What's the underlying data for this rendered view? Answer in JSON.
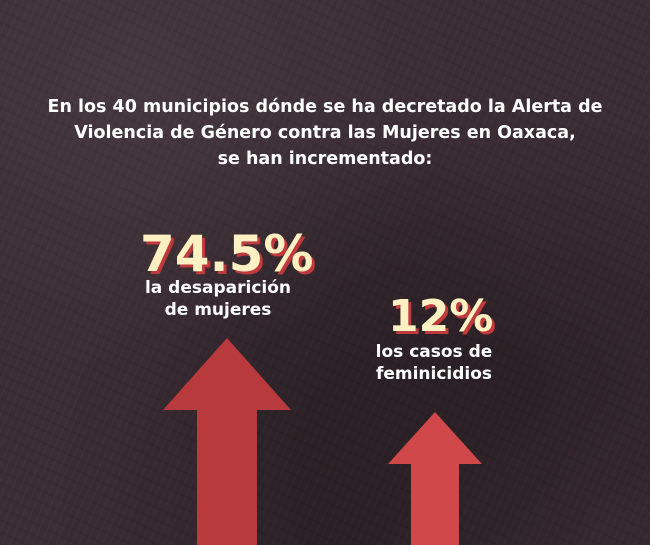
{
  "intro_text": "En los 40 municipios dónde se ha decretado la Alerta de\nViolencia de Género contra las Mujeres en Oaxaca,\nse han incrementado:",
  "stats": [
    {
      "value": "74.5%",
      "label": "la desaparición\nde mujeres"
    },
    {
      "value": "12%",
      "label": "los casos de\nfeminicidios"
    }
  ],
  "colors": {
    "background": "#3b2d34",
    "arrow_1": "#b83a3c",
    "arrow_2": "#d0484a",
    "value_text": "#fdf1c4",
    "value_shadow": "#c0393c"
  },
  "icons": [
    "arrow-up-icon",
    "arrow-up-icon"
  ]
}
